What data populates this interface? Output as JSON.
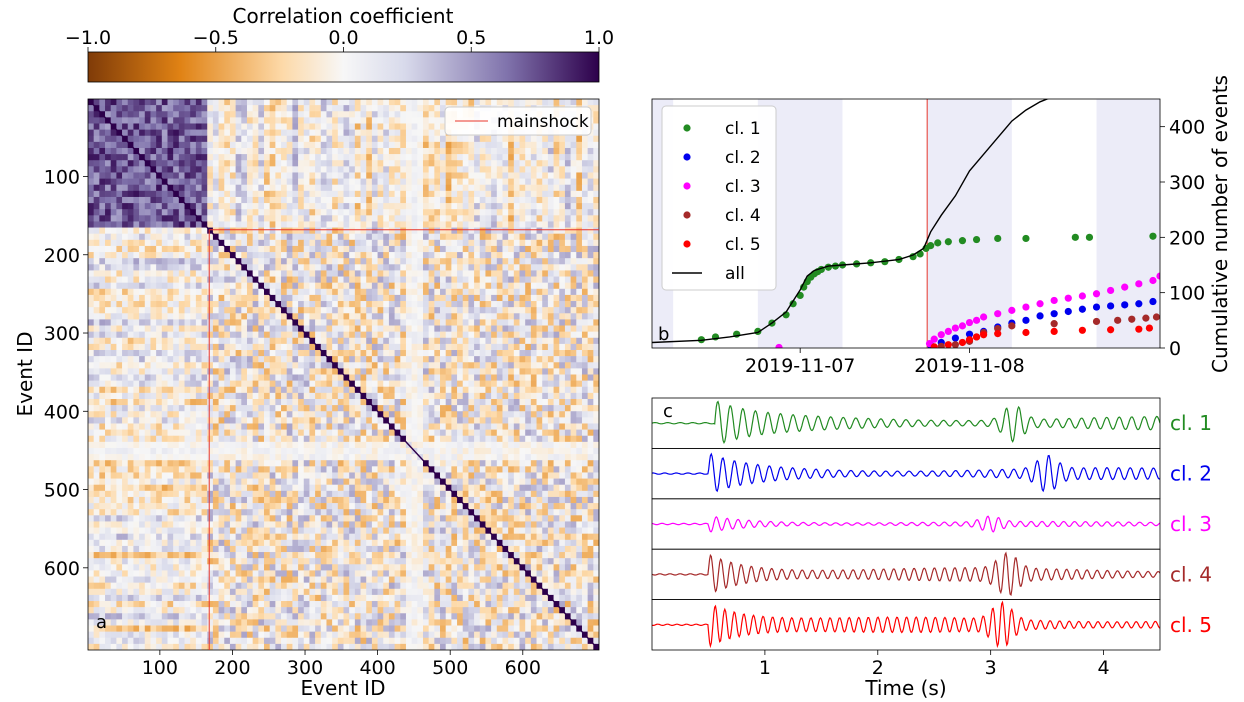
{
  "figure": {
    "colorbar": {
      "label": "Correlation coefficient",
      "range": [
        -1.0,
        1.0
      ],
      "ticks": [
        "−1.0",
        "−0.5",
        "0.0",
        "0.5",
        "1.0"
      ],
      "colormap": "PuOr (orange to purple)",
      "colors": [
        "#7f3b08",
        "#e08214",
        "#fee0b6",
        "#f7f7f7",
        "#d8daeb",
        "#8073ac",
        "#2d004b"
      ]
    },
    "legend_mainshock": "mainshock"
  },
  "chart_data": [
    {
      "panel": "a",
      "type": "heatmap",
      "xlabel": "Event ID",
      "ylabel": "Event ID",
      "xticks": [
        "100",
        "200",
        "300",
        "400",
        "500",
        "600"
      ],
      "yticks": [
        "100",
        "200",
        "300",
        "400",
        "500",
        "600"
      ],
      "xlim": [
        1,
        705
      ],
      "ylim": [
        1,
        705
      ],
      "mainshock_event_id": 168,
      "grid": false,
      "legend": {
        "entries": [
          "mainshock"
        ],
        "placement": "top-right"
      },
      "description_values": {
        "pre_mainshock_block_mean_cc": 0.6,
        "post_mainshock_mean_cc": 0.0,
        "diagonal_cc": 1.0
      }
    },
    {
      "panel": "b",
      "type": "scatter",
      "ylabel": "Cumulative number of events",
      "xticks": [
        "2019-11-07",
        "2019-11-08"
      ],
      "yticks": [
        "0",
        "100",
        "200",
        "300",
        "400"
      ],
      "ylim": [
        0,
        450
      ],
      "xlim": [
        "2019-11-06 03:00",
        "2019-11-09 03:00"
      ],
      "mainshock_time": "2019-11-07 18:00",
      "night_bands": [
        [
          "2019-11-06 03:00",
          "2019-11-06 06:00"
        ],
        [
          "2019-11-06 18:00",
          "2019-11-07 06:00"
        ],
        [
          "2019-11-07 18:00",
          "2019-11-08 06:00"
        ],
        [
          "2019-11-08 18:00",
          "2019-11-09 03:00"
        ]
      ],
      "legend": {
        "placement": "upper-left"
      },
      "series": [
        {
          "name": "cl. 1",
          "color": "#228b22",
          "times": [
            "2019-11-06 10:00",
            "2019-11-06 12:00",
            "2019-11-06 15:00",
            "2019-11-06 18:00",
            "2019-11-06 20:00",
            "2019-11-06 22:00",
            "2019-11-06 23:00",
            "2019-11-07 00:00",
            "2019-11-07 00:30",
            "2019-11-07 01:00",
            "2019-11-07 01:30",
            "2019-11-07 02:00",
            "2019-11-07 02:30",
            "2019-11-07 03:00",
            "2019-11-07 04:00",
            "2019-11-07 05:00",
            "2019-11-07 06:00",
            "2019-11-07 08:00",
            "2019-11-07 10:00",
            "2019-11-07 12:00",
            "2019-11-07 14:00",
            "2019-11-07 16:00",
            "2019-11-07 17:00",
            "2019-11-07 17:50",
            "2019-11-07 18:30",
            "2019-11-07 19:30",
            "2019-11-07 21:00",
            "2019-11-07 23:00",
            "2019-11-08 01:00",
            "2019-11-08 04:00",
            "2019-11-08 08:00",
            "2019-11-08 15:00",
            "2019-11-08 17:00",
            "2019-11-09 02:00"
          ],
          "cumulative": [
            15,
            20,
            25,
            30,
            45,
            60,
            80,
            95,
            110,
            120,
            128,
            134,
            138,
            142,
            146,
            148,
            150,
            152,
            154,
            156,
            160,
            165,
            170,
            180,
            185,
            190,
            192,
            194,
            196,
            198,
            198,
            200,
            200,
            202
          ]
        },
        {
          "name": "cl. 2",
          "color": "#0000ee",
          "times": [
            "2019-11-07 18:30",
            "2019-11-07 20:00",
            "2019-11-07 22:00",
            "2019-11-08 00:00",
            "2019-11-08 02:00",
            "2019-11-08 04:00",
            "2019-11-08 06:00",
            "2019-11-08 08:00",
            "2019-11-08 10:00",
            "2019-11-08 12:00",
            "2019-11-08 14:00",
            "2019-11-08 16:00",
            "2019-11-08 18:00",
            "2019-11-08 20:00",
            "2019-11-08 22:00",
            "2019-11-09 00:00",
            "2019-11-09 02:00"
          ],
          "cumulative": [
            5,
            10,
            18,
            25,
            30,
            38,
            45,
            50,
            58,
            62,
            66,
            70,
            74,
            76,
            78,
            80,
            84
          ]
        },
        {
          "name": "cl. 3",
          "color": "#ff00ff",
          "times": [
            "2019-11-06 21:00",
            "2019-11-07 18:20",
            "2019-11-07 19:00",
            "2019-11-07 20:00",
            "2019-11-07 21:00",
            "2019-11-07 22:00",
            "2019-11-07 23:00",
            "2019-11-08 00:00",
            "2019-11-08 01:00",
            "2019-11-08 02:00",
            "2019-11-08 04:00",
            "2019-11-08 06:00",
            "2019-11-08 08:00",
            "2019-11-08 10:00",
            "2019-11-08 12:00",
            "2019-11-08 14:00",
            "2019-11-08 16:00",
            "2019-11-08 18:00",
            "2019-11-08 20:00",
            "2019-11-08 22:00",
            "2019-11-09 00:00",
            "2019-11-09 02:00",
            "2019-11-09 03:00"
          ],
          "cumulative": [
            1,
            8,
            16,
            24,
            30,
            36,
            40,
            46,
            50,
            56,
            62,
            68,
            74,
            80,
            86,
            90,
            94,
            98,
            104,
            110,
            116,
            122,
            130
          ]
        },
        {
          "name": "cl. 4",
          "color": "#a52a2a",
          "times": [
            "2019-11-07 20:00",
            "2019-11-07 22:00",
            "2019-11-08 00:00",
            "2019-11-08 01:00",
            "2019-11-08 02:00",
            "2019-11-08 04:00",
            "2019-11-08 06:00",
            "2019-11-08 12:00",
            "2019-11-08 18:00",
            "2019-11-08 21:00",
            "2019-11-08 23:00",
            "2019-11-09 01:00",
            "2019-11-09 02:30"
          ],
          "cumulative": [
            3,
            6,
            12,
            20,
            28,
            35,
            40,
            44,
            48,
            50,
            52,
            54,
            56
          ]
        },
        {
          "name": "cl. 5",
          "color": "#ff0000",
          "times": [
            "2019-11-07 19:00",
            "2019-11-07 21:00",
            "2019-11-07 23:00",
            "2019-11-08 00:00",
            "2019-11-08 01:00",
            "2019-11-08 02:00",
            "2019-11-08 04:00",
            "2019-11-08 08:00",
            "2019-11-08 12:00",
            "2019-11-08 16:00",
            "2019-11-08 20:00",
            "2019-11-09 00:00",
            "2019-11-09 01:30"
          ],
          "cumulative": [
            2,
            6,
            10,
            15,
            20,
            24,
            26,
            28,
            30,
            32,
            33,
            34,
            36
          ]
        },
        {
          "name": "all",
          "color": "#000000",
          "kind": "line",
          "times": [
            "2019-11-06 03:00",
            "2019-11-06 10:00",
            "2019-11-06 14:00",
            "2019-11-06 18:00",
            "2019-11-06 20:00",
            "2019-11-06 22:00",
            "2019-11-06 23:00",
            "2019-11-07 00:00",
            "2019-11-07 01:00",
            "2019-11-07 02:00",
            "2019-11-07 04:00",
            "2019-11-07 06:00",
            "2019-11-07 10:00",
            "2019-11-07 14:00",
            "2019-11-07 16:00",
            "2019-11-07 17:30",
            "2019-11-07 18:30",
            "2019-11-07 20:00",
            "2019-11-07 22:00",
            "2019-11-08 00:00",
            "2019-11-08 02:00",
            "2019-11-08 04:00",
            "2019-11-08 06:00",
            "2019-11-08 08:00",
            "2019-11-08 10:00",
            "2019-11-08 12:00"
          ],
          "cumulative": [
            10,
            14,
            20,
            28,
            45,
            65,
            85,
            105,
            130,
            140,
            148,
            150,
            154,
            160,
            168,
            180,
            210,
            240,
            275,
            320,
            350,
            380,
            410,
            430,
            445,
            455
          ]
        }
      ]
    },
    {
      "panel": "c",
      "type": "line",
      "xlabel": "Time (s)",
      "xticks": [
        "1",
        "2",
        "3",
        "4"
      ],
      "xlim": [
        0,
        4.5
      ],
      "series": [
        {
          "name": "cl. 1",
          "color": "#228b22",
          "onset_s": 0.55,
          "amplitude": 0.8,
          "burst_s": 3.2
        },
        {
          "name": "cl. 2",
          "color": "#0000ee",
          "onset_s": 0.5,
          "amplitude": 0.7,
          "burst_s": 3.5
        },
        {
          "name": "cl. 3",
          "color": "#ff00ff",
          "onset_s": 0.5,
          "amplitude": 0.3,
          "burst_s": 3.0
        },
        {
          "name": "cl. 4",
          "color": "#a52a2a",
          "onset_s": 0.5,
          "amplitude": 0.8,
          "burst_s": 3.15
        },
        {
          "name": "cl. 5",
          "color": "#ff0000",
          "onset_s": 0.5,
          "amplitude": 0.9,
          "burst_s": 3.1
        }
      ]
    }
  ],
  "labels": {
    "panel_a": "a",
    "panel_b": "b",
    "panel_c": "c"
  }
}
